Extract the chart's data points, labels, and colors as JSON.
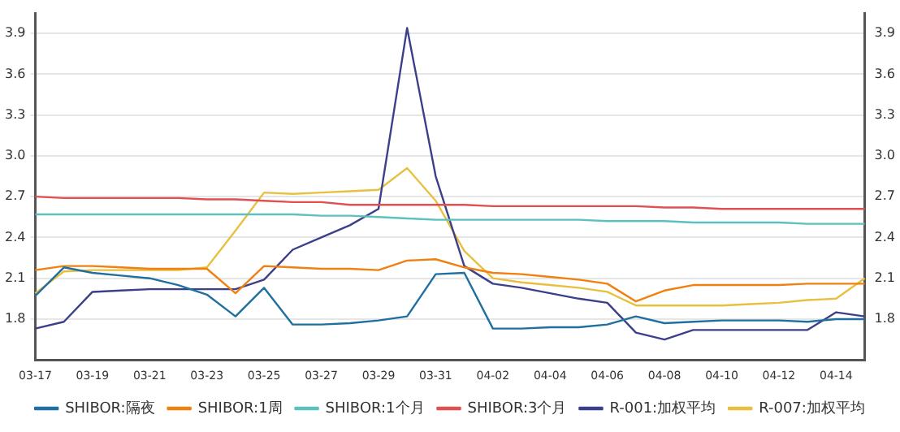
{
  "chart_data": {
    "type": "line",
    "categories": [
      "03-17",
      null,
      "03-19",
      null,
      "03-21",
      null,
      "03-23",
      null,
      "03-25",
      null,
      "03-27",
      null,
      "03-29",
      null,
      "03-31",
      null,
      "04-02",
      null,
      "04-04",
      null,
      "04-06",
      null,
      "04-08",
      null,
      "04-10",
      null,
      "04-12",
      null,
      "04-14",
      null
    ],
    "series": [
      {
        "name": "SHIBOR:隔夜",
        "color": "#1f6fa0",
        "values": [
          1.97,
          2.18,
          2.14,
          2.12,
          2.1,
          2.05,
          1.98,
          1.82,
          2.03,
          1.76,
          1.76,
          1.77,
          1.79,
          1.82,
          2.13,
          2.14,
          1.73,
          1.73,
          1.74,
          1.74,
          1.76,
          1.82,
          1.77,
          1.78,
          1.79,
          1.79,
          1.79,
          1.78,
          1.8,
          1.8
        ]
      },
      {
        "name": "SHIBOR:1周",
        "color": "#f08010",
        "values": [
          2.16,
          2.19,
          2.19,
          2.18,
          2.17,
          2.17,
          2.17,
          1.99,
          2.19,
          2.18,
          2.17,
          2.17,
          2.16,
          2.23,
          2.24,
          2.18,
          2.14,
          2.13,
          2.11,
          2.09,
          2.06,
          1.93,
          2.01,
          2.05,
          2.05,
          2.05,
          2.05,
          2.06,
          2.06,
          2.06
        ]
      },
      {
        "name": "SHIBOR:1个月",
        "color": "#5bc0be",
        "values": [
          2.57,
          2.57,
          2.57,
          2.57,
          2.57,
          2.57,
          2.57,
          2.57,
          2.57,
          2.57,
          2.56,
          2.56,
          2.55,
          2.54,
          2.53,
          2.53,
          2.53,
          2.53,
          2.53,
          2.53,
          2.52,
          2.52,
          2.52,
          2.51,
          2.51,
          2.51,
          2.51,
          2.5,
          2.5,
          2.5
        ]
      },
      {
        "name": "SHIBOR:3个月",
        "color": "#e05050",
        "values": [
          2.7,
          2.69,
          2.69,
          2.69,
          2.69,
          2.69,
          2.68,
          2.68,
          2.67,
          2.66,
          2.66,
          2.64,
          2.64,
          2.64,
          2.64,
          2.64,
          2.63,
          2.63,
          2.63,
          2.63,
          2.63,
          2.63,
          2.62,
          2.62,
          2.61,
          2.61,
          2.61,
          2.61,
          2.61,
          2.61
        ]
      },
      {
        "name": "R-001:加权平均",
        "color": "#3c3f8a",
        "values": [
          1.73,
          1.78,
          2.0,
          2.01,
          2.02,
          2.02,
          2.02,
          2.02,
          2.09,
          2.31,
          2.4,
          2.49,
          2.61,
          3.94,
          2.85,
          2.19,
          2.06,
          2.03,
          1.99,
          1.95,
          1.92,
          1.7,
          1.65,
          1.72,
          1.72,
          1.72,
          1.72,
          1.72,
          1.85,
          1.82
        ]
      },
      {
        "name": "R-007:加权平均",
        "color": "#e8c040",
        "values": [
          1.99,
          2.15,
          2.16,
          2.16,
          2.16,
          2.16,
          2.18,
          2.45,
          2.73,
          2.72,
          2.73,
          2.74,
          2.75,
          2.91,
          2.67,
          2.3,
          2.1,
          2.07,
          2.05,
          2.03,
          2.0,
          1.9,
          1.9,
          1.9,
          1.9,
          1.91,
          1.92,
          1.94,
          1.95,
          2.1
        ]
      }
    ],
    "ylim": [
      1.5,
      4.05
    ],
    "yticks": [
      1.8,
      2.1,
      2.4,
      2.7,
      {
        "value": 3,
        "label": "3.0"
      },
      3.3,
      3.6,
      3.9
    ],
    "y2lim": [
      1.5,
      4.05
    ],
    "y2ticks": [
      1.8,
      2.1,
      2.4,
      2.7,
      {
        "value": 3,
        "label": "3.0"
      },
      3.3,
      3.6,
      3.9
    ],
    "grid": "y",
    "legend": "bottom",
    "marker": "none",
    "line_style": "solid"
  }
}
